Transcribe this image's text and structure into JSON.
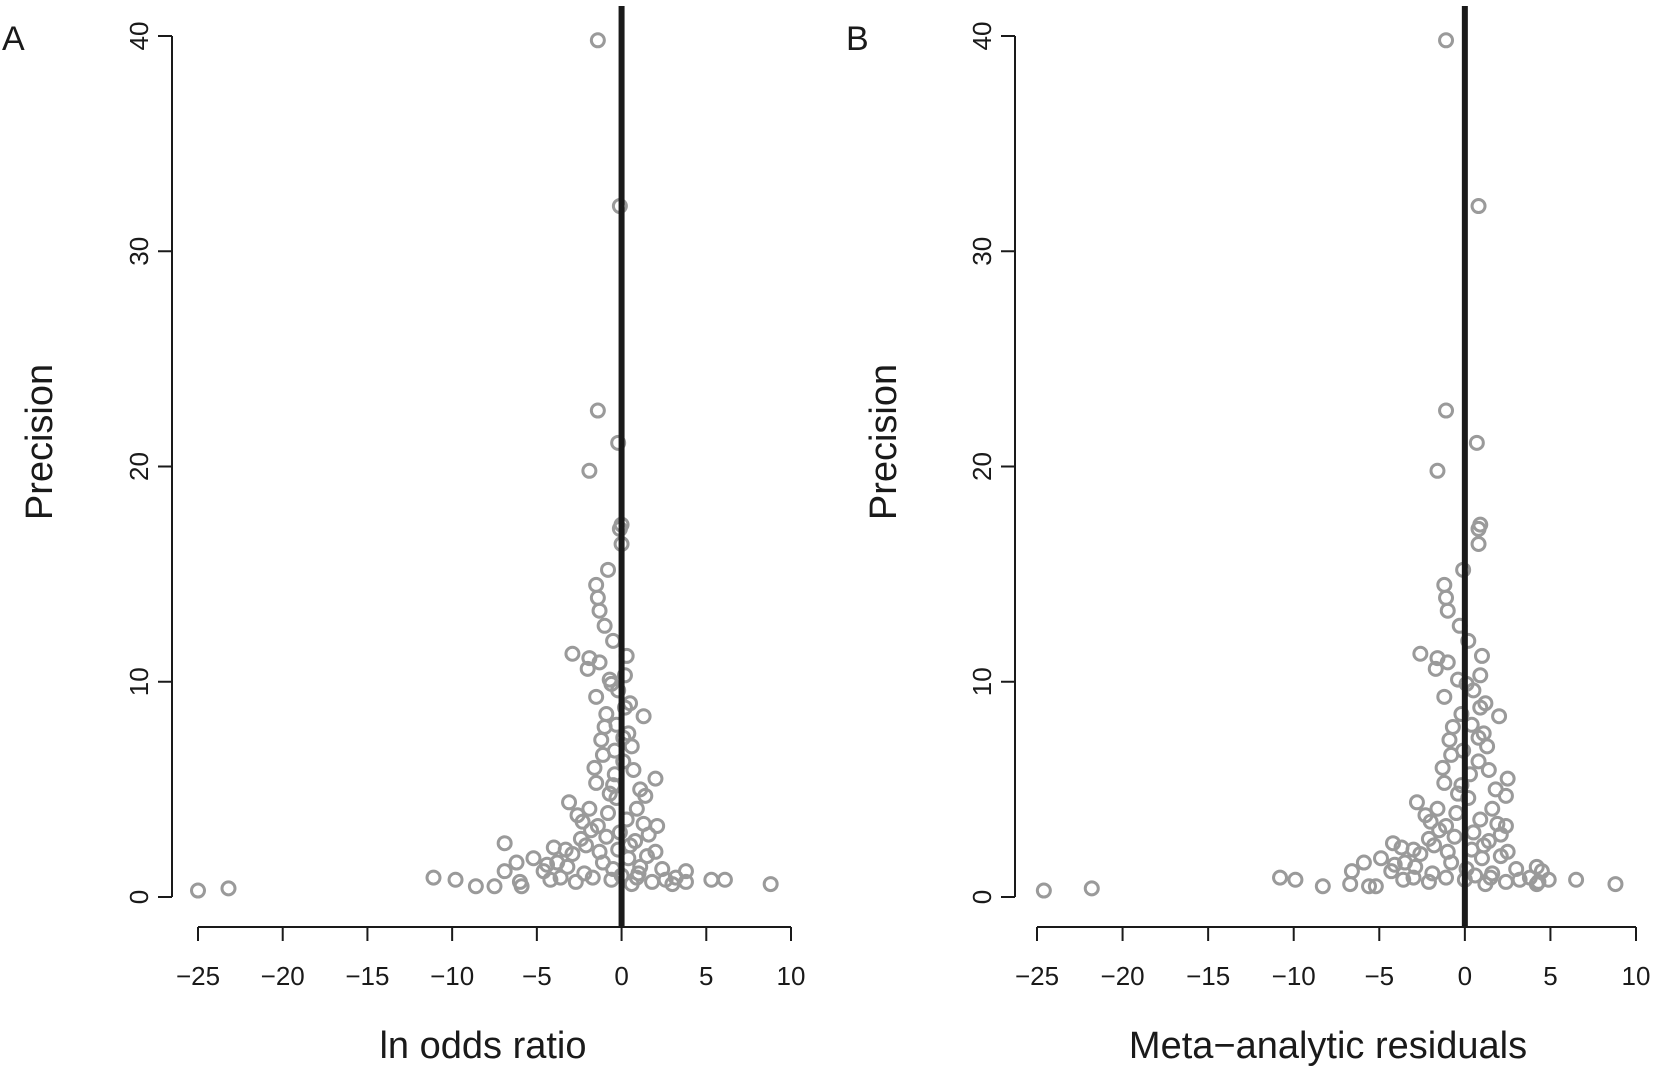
{
  "figure": {
    "panels": [
      {
        "letter": "A",
        "xlabel": "ln odds ratio",
        "ylabel": "Precision"
      },
      {
        "letter": "B",
        "xlabel": "Meta−analytic residuals",
        "ylabel": "Precision"
      }
    ]
  },
  "chart_data": [
    {
      "type": "scatter",
      "title": "",
      "panel_label": "A",
      "xlabel": "ln odds ratio",
      "ylabel": "Precision",
      "xlim": [
        -25,
        10
      ],
      "ylim": [
        0,
        40
      ],
      "xticks": [
        -25,
        -20,
        -15,
        -10,
        -5,
        0,
        5,
        10
      ],
      "xtick_labels": [
        "−25",
        "−20",
        "−15",
        "−10",
        "−5",
        "0",
        "5",
        "10"
      ],
      "yticks": [
        0,
        10,
        20,
        30,
        40
      ],
      "ytick_labels": [
        "0",
        "10",
        "20",
        "30",
        "40"
      ],
      "reference_line_x": 0,
      "marker": "open circle",
      "marker_color": "#9a9a9a",
      "points": [
        {
          "x": -1.4,
          "y": 39.8
        },
        {
          "x": -0.1,
          "y": 32.1
        },
        {
          "x": -1.4,
          "y": 22.6
        },
        {
          "x": -0.2,
          "y": 21.1
        },
        {
          "x": -1.9,
          "y": 19.8
        },
        {
          "x": 0.0,
          "y": 17.3
        },
        {
          "x": -0.1,
          "y": 17.1
        },
        {
          "x": 0.0,
          "y": 16.4
        },
        {
          "x": -0.8,
          "y": 15.2
        },
        {
          "x": -1.5,
          "y": 14.5
        },
        {
          "x": -1.4,
          "y": 13.9
        },
        {
          "x": -1.3,
          "y": 13.3
        },
        {
          "x": -1.0,
          "y": 12.6
        },
        {
          "x": -0.5,
          "y": 11.9
        },
        {
          "x": -2.9,
          "y": 11.3
        },
        {
          "x": -1.9,
          "y": 11.1
        },
        {
          "x": -1.3,
          "y": 10.9
        },
        {
          "x": -2.0,
          "y": 10.6
        },
        {
          "x": 0.2,
          "y": 10.3
        },
        {
          "x": -0.6,
          "y": 9.9
        },
        {
          "x": -1.5,
          "y": 9.3
        },
        {
          "x": 0.5,
          "y": 9.0
        },
        {
          "x": -0.9,
          "y": 8.5
        },
        {
          "x": 1.3,
          "y": 8.4
        },
        {
          "x": -0.3,
          "y": 8.0
        },
        {
          "x": 0.4,
          "y": 7.6
        },
        {
          "x": -1.2,
          "y": 7.3
        },
        {
          "x": 0.6,
          "y": 7.0
        },
        {
          "x": -1.1,
          "y": 6.6
        },
        {
          "x": 0.1,
          "y": 6.3
        },
        {
          "x": -1.6,
          "y": 6.0
        },
        {
          "x": -0.4,
          "y": 5.7
        },
        {
          "x": 2.0,
          "y": 5.5
        },
        {
          "x": -1.5,
          "y": 5.3
        },
        {
          "x": 1.1,
          "y": 5.0
        },
        {
          "x": -0.7,
          "y": 4.8
        },
        {
          "x": 1.4,
          "y": 4.7
        },
        {
          "x": -3.1,
          "y": 4.4
        },
        {
          "x": 0.9,
          "y": 4.1
        },
        {
          "x": -2.6,
          "y": 3.8
        },
        {
          "x": -2.3,
          "y": 3.5
        },
        {
          "x": 2.1,
          "y": 3.3
        },
        {
          "x": -1.8,
          "y": 3.1
        },
        {
          "x": 1.6,
          "y": 2.9
        },
        {
          "x": -2.4,
          "y": 2.7
        },
        {
          "x": -6.9,
          "y": 2.5
        },
        {
          "x": -4.0,
          "y": 2.3
        },
        {
          "x": -3.3,
          "y": 2.2
        },
        {
          "x": 2.0,
          "y": 2.1
        },
        {
          "x": -5.2,
          "y": 1.8
        },
        {
          "x": -6.2,
          "y": 1.6
        },
        {
          "x": -4.4,
          "y": 1.5
        },
        {
          "x": 1.1,
          "y": 1.4
        },
        {
          "x": -6.9,
          "y": 1.2
        },
        {
          "x": 3.8,
          "y": 1.2
        },
        {
          "x": -11.1,
          "y": 0.9
        },
        {
          "x": -9.8,
          "y": 0.8
        },
        {
          "x": 5.3,
          "y": 0.8
        },
        {
          "x": 6.1,
          "y": 0.8
        },
        {
          "x": -6.0,
          "y": 0.7
        },
        {
          "x": 3.8,
          "y": 0.7
        },
        {
          "x": 8.8,
          "y": 0.6
        },
        {
          "x": -5.9,
          "y": 0.5
        },
        {
          "x": -7.5,
          "y": 0.5
        },
        {
          "x": -8.6,
          "y": 0.5
        },
        {
          "x": 3.0,
          "y": 0.6
        },
        {
          "x": -23.2,
          "y": 0.4
        },
        {
          "x": -25.0,
          "y": 0.3
        },
        {
          "x": -4.6,
          "y": 1.2
        },
        {
          "x": -3.8,
          "y": 1.6
        },
        {
          "x": -2.9,
          "y": 2.0
        },
        {
          "x": -2.1,
          "y": 2.4
        },
        {
          "x": -1.4,
          "y": 3.3
        },
        {
          "x": -0.8,
          "y": 3.9
        },
        {
          "x": -0.3,
          "y": 4.6
        },
        {
          "x": 0.3,
          "y": 3.6
        },
        {
          "x": 0.8,
          "y": 2.6
        },
        {
          "x": 1.5,
          "y": 1.9
        },
        {
          "x": 2.4,
          "y": 1.3
        },
        {
          "x": 3.2,
          "y": 0.9
        },
        {
          "x": 1.8,
          "y": 0.7
        },
        {
          "x": 0.6,
          "y": 0.6
        },
        {
          "x": -0.6,
          "y": 0.8
        },
        {
          "x": -1.7,
          "y": 0.9
        },
        {
          "x": -2.7,
          "y": 0.7
        },
        {
          "x": -3.6,
          "y": 0.9
        },
        {
          "x": -4.2,
          "y": 0.8
        },
        {
          "x": -1.1,
          "y": 1.6
        },
        {
          "x": -0.2,
          "y": 2.2
        },
        {
          "x": 0.4,
          "y": 1.8
        },
        {
          "x": 1.0,
          "y": 1.1
        },
        {
          "x": -0.5,
          "y": 1.3
        },
        {
          "x": -1.3,
          "y": 2.1
        },
        {
          "x": -0.9,
          "y": 2.8
        },
        {
          "x": -0.1,
          "y": 3.0
        },
        {
          "x": 0.5,
          "y": 2.4
        },
        {
          "x": 1.3,
          "y": 3.4
        },
        {
          "x": -0.4,
          "y": 6.8
        },
        {
          "x": 0.2,
          "y": 8.8
        },
        {
          "x": -0.7,
          "y": 10.1
        },
        {
          "x": 0.3,
          "y": 11.2
        },
        {
          "x": -0.2,
          "y": 9.6
        },
        {
          "x": 0.1,
          "y": 7.4
        },
        {
          "x": -1.0,
          "y": 7.9
        },
        {
          "x": -0.5,
          "y": 5.2
        },
        {
          "x": 0.7,
          "y": 5.9
        },
        {
          "x": -1.9,
          "y": 4.1
        },
        {
          "x": 2.6,
          "y": 0.8
        },
        {
          "x": -2.2,
          "y": 1.1
        },
        {
          "x": -3.2,
          "y": 1.4
        },
        {
          "x": 0.0,
          "y": 1.0
        },
        {
          "x": 0.9,
          "y": 0.9
        }
      ]
    },
    {
      "type": "scatter",
      "title": "",
      "panel_label": "B",
      "xlabel": "Meta−analytic residuals",
      "ylabel": "Precision",
      "xlim": [
        -25,
        10
      ],
      "ylim": [
        0,
        40
      ],
      "xticks": [
        -25,
        -20,
        -15,
        -10,
        -5,
        0,
        5,
        10
      ],
      "xtick_labels": [
        "−25",
        "−20",
        "−15",
        "−10",
        "−5",
        "0",
        "5",
        "10"
      ],
      "yticks": [
        0,
        10,
        20,
        30,
        40
      ],
      "ytick_labels": [
        "0",
        "10",
        "20",
        "30",
        "40"
      ],
      "reference_line_x": 0,
      "marker": "open circle",
      "marker_color": "#9a9a9a",
      "points": [
        {
          "x": -1.1,
          "y": 39.8
        },
        {
          "x": 0.8,
          "y": 32.1
        },
        {
          "x": -1.1,
          "y": 22.6
        },
        {
          "x": 0.7,
          "y": 21.1
        },
        {
          "x": -1.6,
          "y": 19.8
        },
        {
          "x": 0.9,
          "y": 17.3
        },
        {
          "x": 0.8,
          "y": 17.1
        },
        {
          "x": 0.8,
          "y": 16.4
        },
        {
          "x": -0.1,
          "y": 15.2
        },
        {
          "x": -1.2,
          "y": 14.5
        },
        {
          "x": -1.1,
          "y": 13.9
        },
        {
          "x": -1.0,
          "y": 13.3
        },
        {
          "x": -0.3,
          "y": 12.6
        },
        {
          "x": 0.2,
          "y": 11.9
        },
        {
          "x": -2.6,
          "y": 11.3
        },
        {
          "x": -1.6,
          "y": 11.1
        },
        {
          "x": -1.0,
          "y": 10.9
        },
        {
          "x": -1.7,
          "y": 10.6
        },
        {
          "x": 0.9,
          "y": 10.3
        },
        {
          "x": 0.1,
          "y": 9.9
        },
        {
          "x": -1.2,
          "y": 9.3
        },
        {
          "x": 1.2,
          "y": 9.0
        },
        {
          "x": -0.2,
          "y": 8.5
        },
        {
          "x": 2.0,
          "y": 8.4
        },
        {
          "x": 0.4,
          "y": 8.0
        },
        {
          "x": 1.1,
          "y": 7.6
        },
        {
          "x": -0.9,
          "y": 7.3
        },
        {
          "x": 1.3,
          "y": 7.0
        },
        {
          "x": -0.8,
          "y": 6.6
        },
        {
          "x": 0.8,
          "y": 6.3
        },
        {
          "x": -1.3,
          "y": 6.0
        },
        {
          "x": 0.3,
          "y": 5.7
        },
        {
          "x": 2.5,
          "y": 5.5
        },
        {
          "x": -1.2,
          "y": 5.3
        },
        {
          "x": 1.8,
          "y": 5.0
        },
        {
          "x": -0.4,
          "y": 4.8
        },
        {
          "x": 2.4,
          "y": 4.7
        },
        {
          "x": -2.8,
          "y": 4.4
        },
        {
          "x": 1.6,
          "y": 4.1
        },
        {
          "x": -2.3,
          "y": 3.8
        },
        {
          "x": -2.0,
          "y": 3.5
        },
        {
          "x": 2.4,
          "y": 3.3
        },
        {
          "x": -1.5,
          "y": 3.1
        },
        {
          "x": 2.1,
          "y": 2.9
        },
        {
          "x": -2.1,
          "y": 2.7
        },
        {
          "x": -4.2,
          "y": 2.5
        },
        {
          "x": -3.7,
          "y": 2.3
        },
        {
          "x": -3.0,
          "y": 2.2
        },
        {
          "x": 2.5,
          "y": 2.1
        },
        {
          "x": -4.9,
          "y": 1.8
        },
        {
          "x": -5.9,
          "y": 1.6
        },
        {
          "x": -4.1,
          "y": 1.5
        },
        {
          "x": 4.2,
          "y": 1.4
        },
        {
          "x": -6.6,
          "y": 1.2
        },
        {
          "x": 4.5,
          "y": 1.2
        },
        {
          "x": -10.8,
          "y": 0.9
        },
        {
          "x": -9.9,
          "y": 0.8
        },
        {
          "x": 4.9,
          "y": 0.8
        },
        {
          "x": 6.5,
          "y": 0.8
        },
        {
          "x": -6.7,
          "y": 0.6
        },
        {
          "x": 4.3,
          "y": 0.7
        },
        {
          "x": 8.8,
          "y": 0.6
        },
        {
          "x": -5.6,
          "y": 0.5
        },
        {
          "x": -5.2,
          "y": 0.5
        },
        {
          "x": -8.3,
          "y": 0.5
        },
        {
          "x": 4.2,
          "y": 0.6
        },
        {
          "x": -21.8,
          "y": 0.4
        },
        {
          "x": -24.6,
          "y": 0.3
        },
        {
          "x": -4.3,
          "y": 1.2
        },
        {
          "x": -3.5,
          "y": 1.6
        },
        {
          "x": -2.6,
          "y": 2.0
        },
        {
          "x": -1.8,
          "y": 2.4
        },
        {
          "x": -1.1,
          "y": 3.3
        },
        {
          "x": -0.5,
          "y": 3.9
        },
        {
          "x": 0.2,
          "y": 4.6
        },
        {
          "x": 0.9,
          "y": 3.6
        },
        {
          "x": 1.4,
          "y": 2.6
        },
        {
          "x": 2.1,
          "y": 1.9
        },
        {
          "x": 3.0,
          "y": 1.3
        },
        {
          "x": 3.8,
          "y": 0.9
        },
        {
          "x": 2.4,
          "y": 0.7
        },
        {
          "x": 1.2,
          "y": 0.6
        },
        {
          "x": 0.0,
          "y": 0.8
        },
        {
          "x": -1.1,
          "y": 0.9
        },
        {
          "x": -2.1,
          "y": 0.7
        },
        {
          "x": -3.0,
          "y": 0.9
        },
        {
          "x": -3.6,
          "y": 0.8
        },
        {
          "x": -0.8,
          "y": 1.6
        },
        {
          "x": 0.4,
          "y": 2.2
        },
        {
          "x": 1.0,
          "y": 1.8
        },
        {
          "x": 1.6,
          "y": 1.1
        },
        {
          "x": 0.1,
          "y": 1.3
        },
        {
          "x": -1.0,
          "y": 2.1
        },
        {
          "x": -0.6,
          "y": 2.8
        },
        {
          "x": 0.5,
          "y": 3.0
        },
        {
          "x": 1.1,
          "y": 2.4
        },
        {
          "x": 1.9,
          "y": 3.4
        },
        {
          "x": -0.1,
          "y": 6.8
        },
        {
          "x": 0.9,
          "y": 8.8
        },
        {
          "x": -0.4,
          "y": 10.1
        },
        {
          "x": 1.0,
          "y": 11.2
        },
        {
          "x": 0.5,
          "y": 9.6
        },
        {
          "x": 0.8,
          "y": 7.4
        },
        {
          "x": -0.7,
          "y": 7.9
        },
        {
          "x": -0.2,
          "y": 5.2
        },
        {
          "x": 1.4,
          "y": 5.9
        },
        {
          "x": -1.6,
          "y": 4.1
        },
        {
          "x": 3.2,
          "y": 0.8
        },
        {
          "x": -1.9,
          "y": 1.1
        },
        {
          "x": -2.9,
          "y": 1.4
        },
        {
          "x": 0.6,
          "y": 1.0
        },
        {
          "x": 1.5,
          "y": 0.9
        }
      ]
    }
  ]
}
